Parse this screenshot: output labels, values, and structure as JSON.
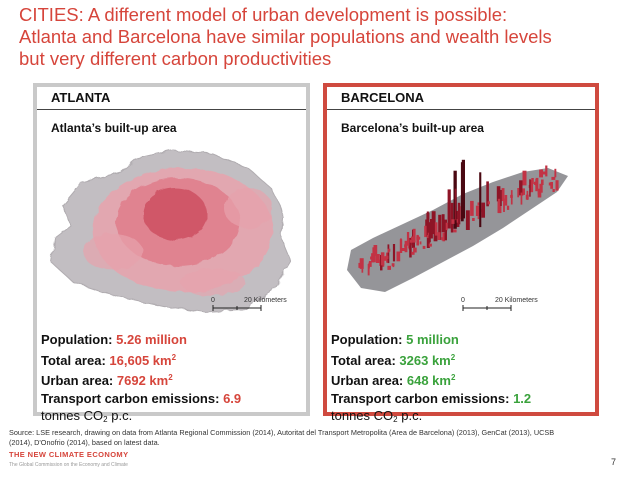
{
  "title": {
    "line1": "CITIES: A different model of urban development is possible:",
    "line2": "Atlanta and Barcelona have similar populations and wealth levels",
    "line3": "but very different carbon productivities"
  },
  "atlanta": {
    "heading": "ATLANTA",
    "subtitle": "Atlanta’s built-up area",
    "scale_zero": "0",
    "scale_km": "20 Kilometers",
    "population_label": "Population:",
    "population_value": "5.26 million",
    "total_area_label": "Total area:",
    "total_area_value": "16,605 km",
    "total_area_exp": "2",
    "urban_area_label": "Urban area:",
    "urban_area_value": "7692 km",
    "urban_area_exp": "2",
    "transport_label": "Transport carbon emissions:",
    "transport_value": "6.9",
    "unit_prefix": "tonnes CO",
    "unit_sub": "2",
    "unit_suffix": " p.c."
  },
  "barcelona": {
    "heading": "BARCELONA",
    "subtitle": "Barcelona’s built-up area",
    "scale_zero": "0",
    "scale_km": "20 Kilometers",
    "population_label": "Population:",
    "population_value": "5 million",
    "total_area_label": "Total area:",
    "total_area_value": "3263 km",
    "total_area_exp": "2",
    "urban_area_label": "Urban area:",
    "urban_area_value": "648 km",
    "urban_area_exp": "2",
    "transport_label": "Transport carbon emissions:",
    "transport_value": "1.2",
    "unit_prefix": "tonnes CO",
    "unit_sub": "2",
    "unit_suffix": " p.c."
  },
  "source": {
    "line1": "Source: LSE research, drawing on data from Atlanta Regional Commission (2014), Autoritat del Transport Metropolita (Area de Barcelona) (2013), GenCat (2013), UCSB",
    "line2": "(2014), D'Onofrio (2014), based on latest data."
  },
  "logo": {
    "name": "THE NEW CLIMATE ECONOMY",
    "tagline": "The Global Commission on the Economy and Climate"
  },
  "page_number": "7",
  "colors": {
    "accent_red": "#d6453b",
    "accent_green": "#3aa23c",
    "atlanta_border": "#c9c9c9",
    "barcelona_border": "#cf4a3f"
  }
}
